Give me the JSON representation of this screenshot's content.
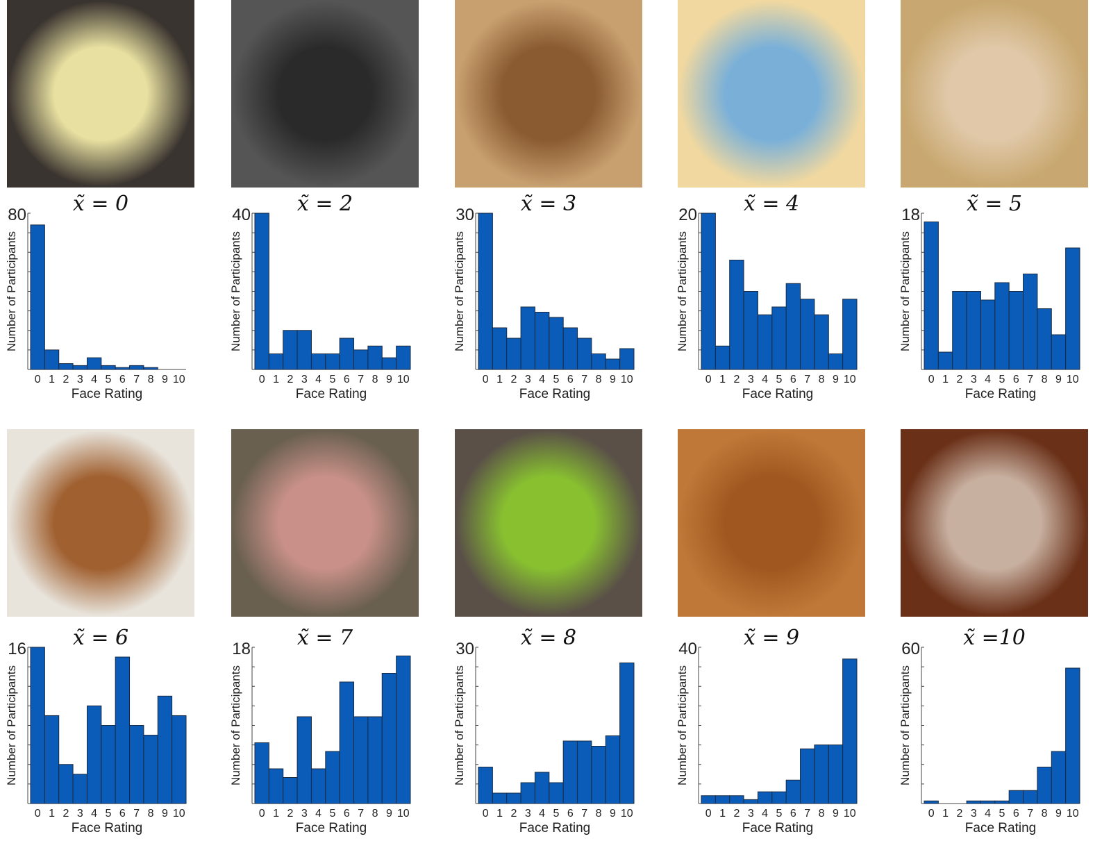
{
  "chart_data": [
    {
      "type": "bar",
      "title": "x̃ = 0",
      "xlabel": "Face Rating",
      "ylabel": "Number of Participants",
      "ymax_label": "80",
      "ylim": [
        0,
        80
      ],
      "categories": [
        "0",
        "1",
        "2",
        "3",
        "4",
        "5",
        "6",
        "7",
        "8",
        "9",
        "10"
      ],
      "values": [
        74,
        10,
        3,
        2,
        6,
        2,
        1,
        2,
        1,
        0,
        0
      ]
    },
    {
      "type": "bar",
      "title": "x̃ = 2",
      "xlabel": "Face Rating",
      "ylabel": "Number of Participants",
      "ymax_label": "40",
      "ylim": [
        0,
        40
      ],
      "categories": [
        "0",
        "1",
        "2",
        "3",
        "4",
        "5",
        "6",
        "7",
        "8",
        "9",
        "10"
      ],
      "values": [
        40,
        4,
        10,
        10,
        4,
        4,
        8,
        5,
        6,
        3,
        6
      ]
    },
    {
      "type": "bar",
      "title": "x̃ = 3",
      "xlabel": "Face Rating",
      "ylabel": "Number of Participants",
      "ymax_label": "30",
      "ylim": [
        0,
        30
      ],
      "categories": [
        "0",
        "1",
        "2",
        "3",
        "4",
        "5",
        "6",
        "7",
        "8",
        "9",
        "10"
      ],
      "values": [
        30,
        8,
        6,
        12,
        11,
        10,
        8,
        6,
        3,
        2,
        4
      ]
    },
    {
      "type": "bar",
      "title": "x̃ = 4",
      "xlabel": "Face Rating",
      "ylabel": "Number of Participants",
      "ymax_label": "20",
      "ylim": [
        0,
        20
      ],
      "categories": [
        "0",
        "1",
        "2",
        "3",
        "4",
        "5",
        "6",
        "7",
        "8",
        "9",
        "10"
      ],
      "values": [
        20,
        3,
        14,
        10,
        7,
        8,
        11,
        9,
        7,
        2,
        9
      ]
    },
    {
      "type": "bar",
      "title": "x̃ = 5",
      "xlabel": "Face Rating",
      "ylabel": "Number of Participants",
      "ymax_label": "18",
      "ylim": [
        0,
        18
      ],
      "categories": [
        "0",
        "1",
        "2",
        "3",
        "4",
        "5",
        "6",
        "7",
        "8",
        "9",
        "10"
      ],
      "values": [
        17,
        2,
        9,
        9,
        8,
        10,
        9,
        11,
        7,
        4,
        14
      ]
    },
    {
      "type": "bar",
      "title": "x̃ = 6",
      "xlabel": "Face Rating",
      "ylabel": "Number of Participants",
      "ymax_label": "16",
      "ylim": [
        0,
        16
      ],
      "categories": [
        "0",
        "1",
        "2",
        "3",
        "4",
        "5",
        "6",
        "7",
        "8",
        "9",
        "10"
      ],
      "values": [
        16,
        9,
        4,
        3,
        10,
        8,
        15,
        8,
        7,
        11,
        9
      ]
    },
    {
      "type": "bar",
      "title": "x̃ = 7",
      "xlabel": "Face Rating",
      "ylabel": "Number of Participants",
      "ymax_label": "18",
      "ylim": [
        0,
        18
      ],
      "categories": [
        "0",
        "1",
        "2",
        "3",
        "4",
        "5",
        "6",
        "7",
        "8",
        "9",
        "10"
      ],
      "values": [
        7,
        4,
        3,
        10,
        4,
        6,
        14,
        10,
        10,
        15,
        17
      ]
    },
    {
      "type": "bar",
      "title": "x̃ = 8",
      "xlabel": "Face Rating",
      "ylabel": "Number of Participants",
      "ymax_label": "30",
      "ylim": [
        0,
        30
      ],
      "categories": [
        "0",
        "1",
        "2",
        "3",
        "4",
        "5",
        "6",
        "7",
        "8",
        "9",
        "10"
      ],
      "values": [
        7,
        2,
        2,
        4,
        6,
        4,
        12,
        12,
        11,
        13,
        27
      ]
    },
    {
      "type": "bar",
      "title": "x̃ = 9",
      "xlabel": "Face Rating",
      "ylabel": "Number of Participants",
      "ymax_label": "40",
      "ylim": [
        0,
        40
      ],
      "categories": [
        "0",
        "1",
        "2",
        "3",
        "4",
        "5",
        "6",
        "7",
        "8",
        "9",
        "10"
      ],
      "values": [
        2,
        2,
        2,
        1,
        3,
        3,
        6,
        14,
        15,
        15,
        37
      ]
    },
    {
      "type": "bar",
      "title": "x̃ =10",
      "xlabel": "Face Rating",
      "ylabel": "Number of Participants",
      "ymax_label": "60",
      "ylim": [
        0,
        60
      ],
      "categories": [
        "0",
        "1",
        "2",
        "3",
        "4",
        "5",
        "6",
        "7",
        "8",
        "9",
        "10"
      ],
      "values": [
        1,
        0,
        0,
        1,
        1,
        1,
        5,
        5,
        14,
        20,
        52
      ]
    }
  ],
  "colors": {
    "bar": "#0a5cb8",
    "photos": [
      [
        "#3a3430",
        "#e8e0a0"
      ],
      [
        "#555555",
        "#2a2a2a"
      ],
      [
        "#c8a070",
        "#8a5a30"
      ],
      [
        "#f0d8a0",
        "#7ab0d8"
      ],
      [
        "#c8a870",
        "#e0c8a8"
      ],
      [
        "#e8e4dc",
        "#a06030"
      ],
      [
        "#6a6050",
        "#c89088"
      ],
      [
        "#5a5048",
        "#88c030"
      ],
      [
        "#c07838",
        "#a05820"
      ],
      [
        "#6a3018",
        "#c8b0a0"
      ]
    ]
  }
}
